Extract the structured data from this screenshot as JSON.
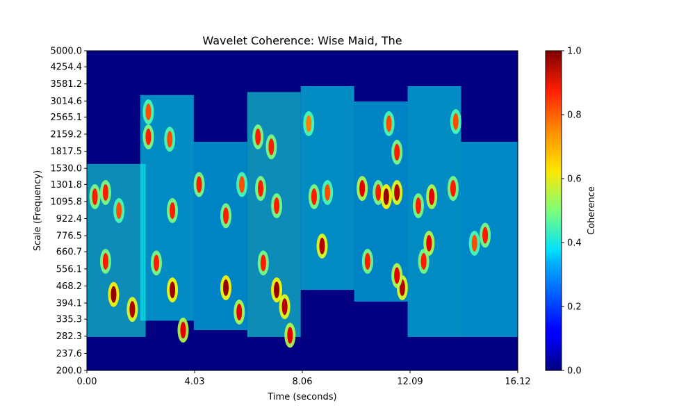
{
  "chart_data": {
    "type": "heatmap",
    "title": "Wavelet Coherence: Wise Maid, The",
    "xlabel": "Time (seconds)",
    "ylabel": "Scale (Frequency)",
    "xlim": [
      0.0,
      16.12
    ],
    "ylim": [
      200.0,
      5000.0
    ],
    "yscale": "log",
    "x_ticks": [
      "0.00",
      "4.03",
      "8.06",
      "12.09",
      "16.12"
    ],
    "y_ticks": [
      "200.0",
      "237.6",
      "282.3",
      "335.3",
      "394.1",
      "468.2",
      "556.1",
      "660.7",
      "776.5",
      "922.4",
      "1095.8",
      "1301.8",
      "1530.0",
      "1817.5",
      "2159.2",
      "2565.1",
      "3014.6",
      "3581.2",
      "4254.4",
      "5000.0"
    ],
    "colormap": "jet",
    "colorbar": {
      "label": "Coherence",
      "range": [
        0.0,
        1.0
      ],
      "ticks": [
        "0.0",
        "0.2",
        "0.4",
        "0.6",
        "0.8",
        "1.0"
      ]
    },
    "background_value": 0.0,
    "blobs": [
      {
        "t": 1.0,
        "scale": 430,
        "v": 0.98
      },
      {
        "t": 1.7,
        "scale": 370,
        "v": 0.95
      },
      {
        "t": 3.2,
        "scale": 450,
        "v": 0.97
      },
      {
        "t": 3.6,
        "scale": 300,
        "v": 0.9
      },
      {
        "t": 5.2,
        "scale": 460,
        "v": 0.98
      },
      {
        "t": 5.7,
        "scale": 360,
        "v": 0.9
      },
      {
        "t": 7.1,
        "scale": 450,
        "v": 0.98
      },
      {
        "t": 7.4,
        "scale": 380,
        "v": 0.95
      },
      {
        "t": 7.6,
        "scale": 285,
        "v": 0.9
      },
      {
        "t": 11.8,
        "scale": 460,
        "v": 0.95
      },
      {
        "t": 11.6,
        "scale": 520,
        "v": 0.9
      },
      {
        "t": 0.7,
        "scale": 600,
        "v": 0.85
      },
      {
        "t": 2.6,
        "scale": 590,
        "v": 0.85
      },
      {
        "t": 6.6,
        "scale": 590,
        "v": 0.85
      },
      {
        "t": 8.8,
        "scale": 700,
        "v": 0.95
      },
      {
        "t": 10.5,
        "scale": 600,
        "v": 0.85
      },
      {
        "t": 12.8,
        "scale": 720,
        "v": 0.9
      },
      {
        "t": 12.6,
        "scale": 600,
        "v": 0.85
      },
      {
        "t": 14.5,
        "scale": 720,
        "v": 0.8
      },
      {
        "t": 14.9,
        "scale": 780,
        "v": 0.85
      },
      {
        "t": 0.3,
        "scale": 1150,
        "v": 0.85
      },
      {
        "t": 0.7,
        "scale": 1200,
        "v": 0.85
      },
      {
        "t": 1.2,
        "scale": 1000,
        "v": 0.8
      },
      {
        "t": 3.2,
        "scale": 1000,
        "v": 0.85
      },
      {
        "t": 4.2,
        "scale": 1300,
        "v": 0.85
      },
      {
        "t": 5.2,
        "scale": 950,
        "v": 0.85
      },
      {
        "t": 5.8,
        "scale": 1300,
        "v": 0.8
      },
      {
        "t": 6.5,
        "scale": 1250,
        "v": 0.85
      },
      {
        "t": 7.1,
        "scale": 1050,
        "v": 0.85
      },
      {
        "t": 8.5,
        "scale": 1150,
        "v": 0.85
      },
      {
        "t": 9.0,
        "scale": 1200,
        "v": 0.8
      },
      {
        "t": 10.3,
        "scale": 1250,
        "v": 0.9
      },
      {
        "t": 10.9,
        "scale": 1200,
        "v": 0.85
      },
      {
        "t": 11.2,
        "scale": 1150,
        "v": 0.98
      },
      {
        "t": 11.6,
        "scale": 1200,
        "v": 0.95
      },
      {
        "t": 12.4,
        "scale": 1050,
        "v": 0.85
      },
      {
        "t": 12.9,
        "scale": 1150,
        "v": 0.9
      },
      {
        "t": 13.7,
        "scale": 1250,
        "v": 0.85
      },
      {
        "t": 2.3,
        "scale": 2100,
        "v": 0.85
      },
      {
        "t": 3.1,
        "scale": 2050,
        "v": 0.8
      },
      {
        "t": 6.4,
        "scale": 2100,
        "v": 0.85
      },
      {
        "t": 6.9,
        "scale": 1900,
        "v": 0.85
      },
      {
        "t": 11.6,
        "scale": 1800,
        "v": 0.85
      },
      {
        "t": 11.3,
        "scale": 2400,
        "v": 0.8
      },
      {
        "t": 13.8,
        "scale": 2450,
        "v": 0.8
      },
      {
        "t": 2.3,
        "scale": 2700,
        "v": 0.8
      },
      {
        "t": 8.3,
        "scale": 2400,
        "v": 0.75
      }
    ],
    "regions": [
      {
        "t0": 0.0,
        "t1": 2.2,
        "s0": 280,
        "s1": 1600,
        "v": 0.4
      },
      {
        "t0": 2.0,
        "t1": 4.0,
        "s0": 330,
        "s1": 3200,
        "v": 0.38
      },
      {
        "t0": 4.0,
        "t1": 6.0,
        "s0": 300,
        "s1": 2000,
        "v": 0.36
      },
      {
        "t0": 6.0,
        "t1": 8.0,
        "s0": 280,
        "s1": 3300,
        "v": 0.4
      },
      {
        "t0": 8.0,
        "t1": 10.0,
        "s0": 450,
        "s1": 3500,
        "v": 0.38
      },
      {
        "t0": 10.0,
        "t1": 12.0,
        "s0": 400,
        "s1": 3000,
        "v": 0.36
      },
      {
        "t0": 12.0,
        "t1": 14.0,
        "s0": 280,
        "s1": 3500,
        "v": 0.38
      },
      {
        "t0": 14.0,
        "t1": 16.12,
        "s0": 280,
        "s1": 2000,
        "v": 0.37
      }
    ]
  }
}
